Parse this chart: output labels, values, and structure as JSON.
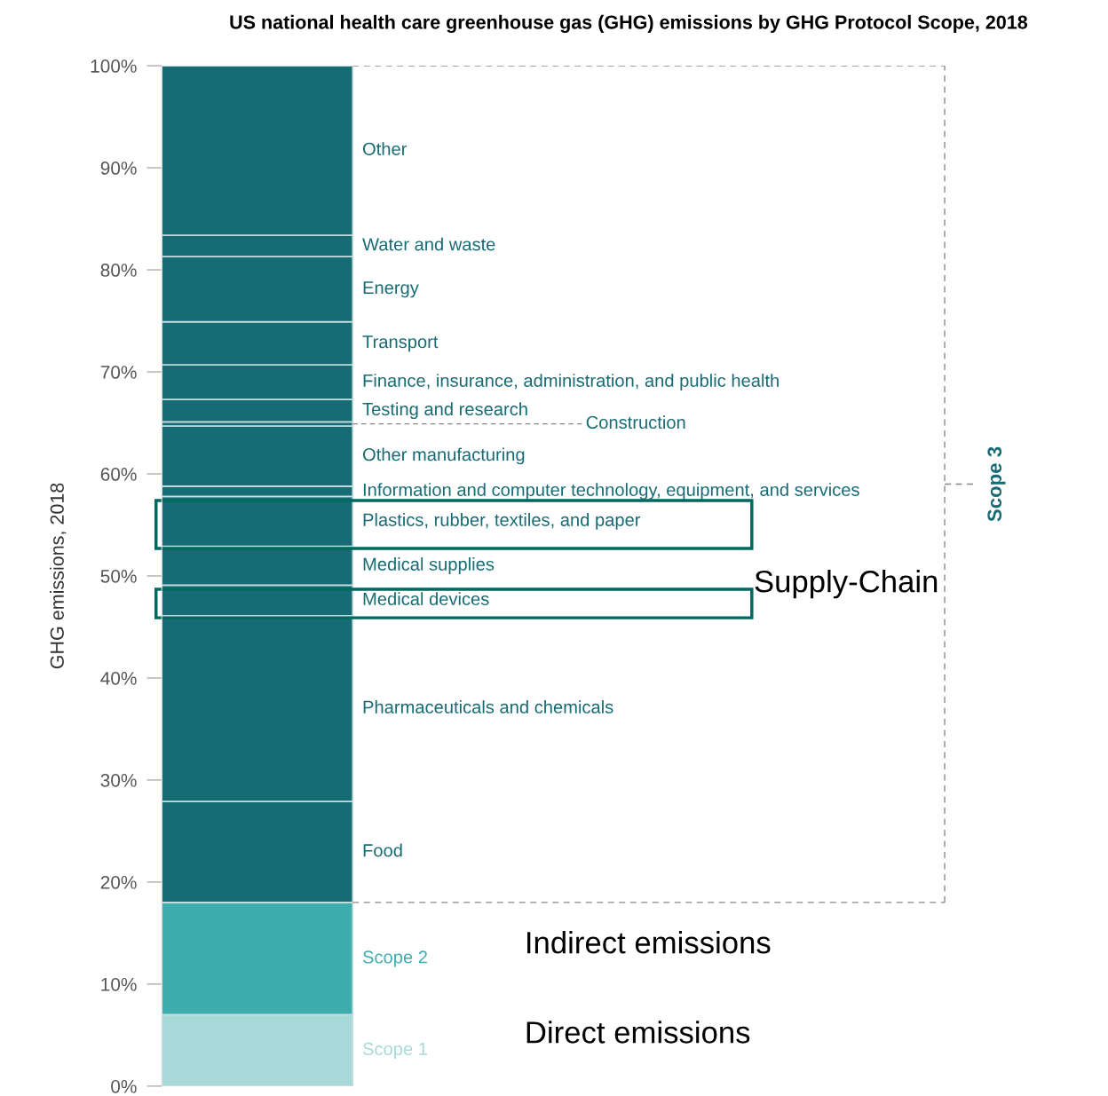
{
  "chart_data": {
    "type": "bar",
    "stacked": true,
    "title": "US national health care greenhouse gas (GHG) emissions by GHG Protocol Scope, 2018",
    "ylabel": "GHG emissions, 2018",
    "categories": [
      null
    ],
    "series": [
      {
        "name": "Scope 1",
        "color": "#a8d9d9",
        "values": [
          7.0
        ]
      },
      {
        "name": "Scope 2",
        "color": "#3eadad",
        "values": [
          11.0
        ]
      },
      {
        "name": "Food",
        "color": "#176b74",
        "values": [
          9.9
        ]
      },
      {
        "name": "Pharmaceuticals and chemicals",
        "color": "#176b74",
        "values": [
          18.2
        ]
      },
      {
        "name": "Medical devices",
        "color": "#176b74",
        "values": [
          3.0
        ]
      },
      {
        "name": "Medical supplies",
        "color": "#176b74",
        "values": [
          3.8
        ]
      },
      {
        "name": "Plastics, rubber, textiles, and paper",
        "color": "#176b74",
        "values": [
          4.9
        ]
      },
      {
        "name": "Information and computer technology, equipment, and services",
        "color": "#176b74",
        "values": [
          1.0
        ]
      },
      {
        "name": "Other manufacturing",
        "color": "#176b74",
        "values": [
          5.9
        ]
      },
      {
        "name": "Construction",
        "color": "#176b74",
        "values": [
          0.4
        ]
      },
      {
        "name": "Testing and research",
        "color": "#176b74",
        "values": [
          2.2
        ]
      },
      {
        "name": "Finance, insurance, administration, and public health",
        "color": "#176b74",
        "values": [
          3.4
        ]
      },
      {
        "name": "Transport",
        "color": "#176b74",
        "values": [
          4.2
        ]
      },
      {
        "name": "Energy",
        "color": "#176b74",
        "values": [
          6.4
        ]
      },
      {
        "name": "Water and waste",
        "color": "#176b74",
        "values": [
          2.1
        ]
      },
      {
        "name": "Other",
        "color": "#176b74",
        "values": [
          16.6
        ]
      }
    ],
    "ylim": [
      0,
      100
    ],
    "yticks": [
      {
        "value": 0,
        "label": "0%"
      },
      {
        "value": 10,
        "label": "10%"
      },
      {
        "value": 20,
        "label": "20%"
      },
      {
        "value": 30,
        "label": "30%"
      },
      {
        "value": 40,
        "label": "40%"
      },
      {
        "value": 50,
        "label": "50%"
      },
      {
        "value": 60,
        "label": "60%"
      },
      {
        "value": 70,
        "label": "70%"
      },
      {
        "value": 80,
        "label": "80%"
      },
      {
        "value": 90,
        "label": "90%"
      },
      {
        "value": 100,
        "label": "100%"
      }
    ],
    "annotations": [
      "Scope 3",
      "Supply-Chain",
      "Indirect emissions",
      "Direct emissions"
    ],
    "grid": false,
    "legend": false
  }
}
